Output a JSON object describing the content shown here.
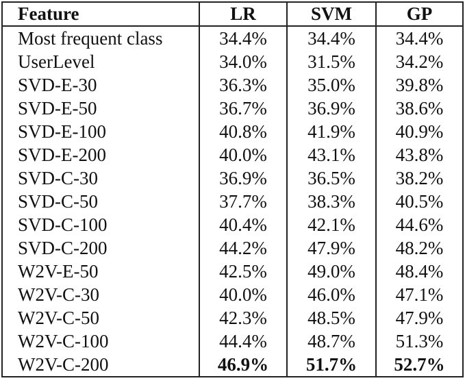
{
  "table": {
    "headers": [
      "Feature",
      "LR",
      "SVM",
      "GP"
    ],
    "rows": [
      {
        "feature": "Most frequent class",
        "lr": "34.4%",
        "svm": "34.4%",
        "gp": "34.4%",
        "bold": false
      },
      {
        "feature": "UserLevel",
        "lr": "34.0%",
        "svm": "31.5%",
        "gp": "34.2%",
        "bold": false
      },
      {
        "feature": "SVD-E-30",
        "lr": "36.3%",
        "svm": "35.0%",
        "gp": "39.8%",
        "bold": false
      },
      {
        "feature": "SVD-E-50",
        "lr": "36.7%",
        "svm": "36.9%",
        "gp": "38.6%",
        "bold": false
      },
      {
        "feature": "SVD-E-100",
        "lr": "40.8%",
        "svm": "41.9%",
        "gp": "40.9%",
        "bold": false
      },
      {
        "feature": "SVD-E-200",
        "lr": "40.0%",
        "svm": "43.1%",
        "gp": "43.8%",
        "bold": false
      },
      {
        "feature": "SVD-C-30",
        "lr": "36.9%",
        "svm": "36.5%",
        "gp": "38.2%",
        "bold": false
      },
      {
        "feature": "SVD-C-50",
        "lr": "37.7%",
        "svm": "38.3%",
        "gp": "40.5%",
        "bold": false
      },
      {
        "feature": "SVD-C-100",
        "lr": "40.4%",
        "svm": "42.1%",
        "gp": "44.6%",
        "bold": false
      },
      {
        "feature": "SVD-C-200",
        "lr": "44.2%",
        "svm": "47.9%",
        "gp": "48.2%",
        "bold": false
      },
      {
        "feature": "W2V-E-50",
        "lr": "42.5%",
        "svm": "49.0%",
        "gp": "48.4%",
        "bold": false
      },
      {
        "feature": "W2V-C-30",
        "lr": "40.0%",
        "svm": "46.0%",
        "gp": "47.1%",
        "bold": false
      },
      {
        "feature": "W2V-C-50",
        "lr": "42.3%",
        "svm": "48.5%",
        "gp": "47.9%",
        "bold": false
      },
      {
        "feature": "W2V-C-100",
        "lr": "44.4%",
        "svm": "48.7%",
        "gp": "51.3%",
        "bold": false
      },
      {
        "feature": "W2V-C-200",
        "lr": "46.9%",
        "svm": "51.7%",
        "gp": "52.7%",
        "bold": true
      }
    ]
  }
}
